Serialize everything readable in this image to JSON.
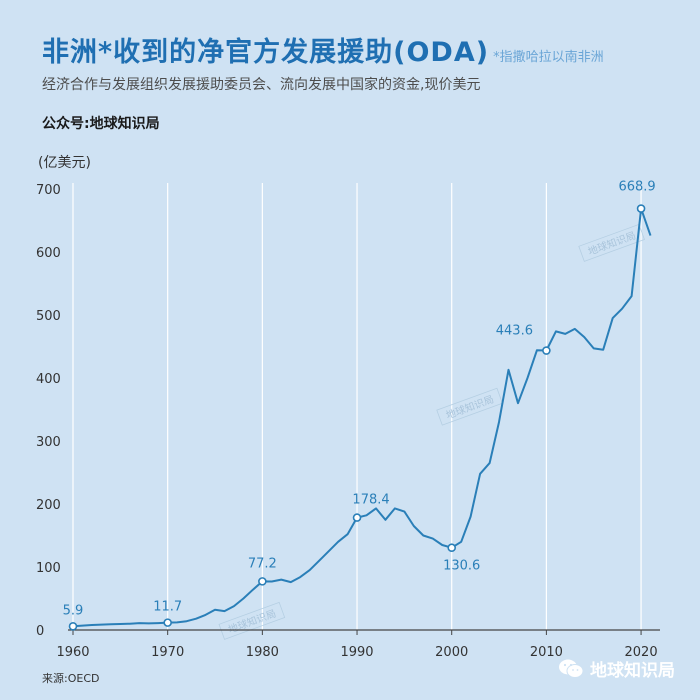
{
  "header": {
    "title": "非洲*收到的净官方发展援助(ODA)",
    "title_note": "*指撒哈拉以南非洲",
    "subtitle": "经济合作与发展组织发展援助委员会、流向发展中国家的资金,现价美元",
    "account": "公众号:地球知识局"
  },
  "footer": {
    "source": "来源:OECD",
    "brand": "地球知识局",
    "brand_icon": "wechat-icon"
  },
  "watermark_text": "地球知识局",
  "colors": {
    "line": "#2a7fb8",
    "background": "#cfe2f3",
    "grid": "#ffffff",
    "title": "#1f6fb2"
  },
  "chart_data": {
    "type": "line",
    "ylabel": "(亿美元)",
    "xlim": [
      1960,
      2022
    ],
    "ylim": [
      0,
      700
    ],
    "x_ticks": [
      1960,
      1970,
      1980,
      1990,
      2000,
      2010,
      2020
    ],
    "y_ticks": [
      0,
      100,
      200,
      300,
      400,
      500,
      600,
      700
    ],
    "grid": "vertical",
    "series": [
      {
        "x": [
          1960,
          1961,
          1962,
          1963,
          1964,
          1965,
          1966,
          1967,
          1968,
          1969,
          1970,
          1971,
          1972,
          1973,
          1974,
          1975,
          1976,
          1977,
          1978,
          1979,
          1980,
          1981,
          1982,
          1983,
          1984,
          1985,
          1986,
          1987,
          1988,
          1989,
          1990,
          1991,
          1992,
          1993,
          1994,
          1995,
          1996,
          1997,
          1998,
          1999,
          2000,
          2001,
          2002,
          2003,
          2004,
          2005,
          2006,
          2007,
          2008,
          2009,
          2010,
          2011,
          2012,
          2013,
          2014,
          2015,
          2016,
          2017,
          2018,
          2019,
          2020,
          2021
        ],
        "y": [
          5.9,
          7,
          8,
          8.5,
          9,
          9.5,
          10,
          11,
          10.5,
          11,
          11.7,
          12,
          14,
          18,
          24,
          32,
          30,
          38,
          50,
          64,
          77.2,
          77,
          80,
          76,
          84,
          95,
          110,
          125,
          140,
          152,
          178.4,
          182,
          193,
          175,
          193,
          188,
          165,
          150,
          145,
          135,
          130.6,
          140,
          180,
          248,
          265,
          330,
          413,
          360,
          400,
          444,
          443.6,
          474,
          470,
          478,
          465,
          447,
          445,
          495,
          510,
          530,
          668.9,
          626
        ]
      }
    ],
    "annotations": [
      {
        "x": 1960,
        "y": 5.9,
        "label": "5.9"
      },
      {
        "x": 1970,
        "y": 11.7,
        "label": "11.7"
      },
      {
        "x": 1980,
        "y": 77.2,
        "label": "77.2"
      },
      {
        "x": 1990,
        "y": 178.4,
        "label": "178.4"
      },
      {
        "x": 2000,
        "y": 130.6,
        "label": "130.6"
      },
      {
        "x": 2010,
        "y": 443.6,
        "label": "443.6"
      },
      {
        "x": 2020,
        "y": 668.9,
        "label": "668.9"
      }
    ]
  }
}
